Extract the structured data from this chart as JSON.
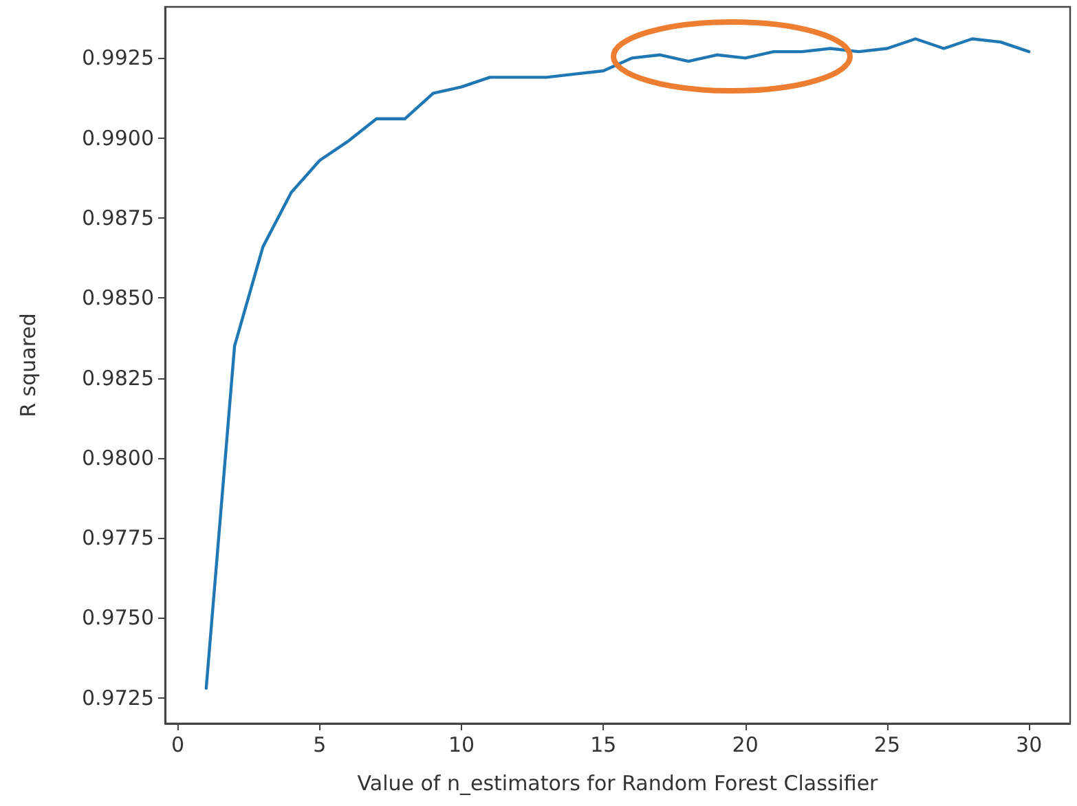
{
  "chart_data": {
    "type": "line",
    "xlabel": "Value of n_estimators for Random Forest Classifier",
    "ylabel": "R squared",
    "x": [
      1,
      2,
      3,
      4,
      5,
      6,
      7,
      8,
      9,
      10,
      11,
      12,
      13,
      14,
      15,
      16,
      17,
      18,
      19,
      20,
      21,
      22,
      23,
      24,
      25,
      26,
      27,
      28,
      29,
      30
    ],
    "series": [
      {
        "color": "#1f77b4",
        "values": [
          0.9728,
          0.9835,
          0.9866,
          0.9883,
          0.9893,
          0.9899,
          0.9906,
          0.9906,
          0.9914,
          0.9916,
          0.9919,
          0.9919,
          0.9919,
          0.992,
          0.9921,
          0.9925,
          0.9926,
          0.9924,
          0.9926,
          0.9925,
          0.9927,
          0.9927,
          0.9928,
          0.9927,
          0.9928,
          0.9931,
          0.9928,
          0.9931,
          0.993,
          0.9927
        ]
      }
    ],
    "xlim": [
      -0.45,
      31.45
    ],
    "xticks": [
      0,
      5,
      10,
      15,
      20,
      25,
      30
    ],
    "ylim": [
      0.9717,
      0.9941
    ],
    "yticks": [
      0.9725,
      {
        "value": 0.975,
        "label": "0.9750"
      },
      0.9775,
      {
        "value": 0.98,
        "label": "0.9800"
      },
      0.9825,
      {
        "value": 0.985,
        "label": "0.9850"
      },
      0.9875,
      {
        "value": 0.99,
        "label": "0.9900"
      },
      0.9925
    ],
    "grid": false,
    "marker": "none",
    "line_style": "solid"
  }
}
